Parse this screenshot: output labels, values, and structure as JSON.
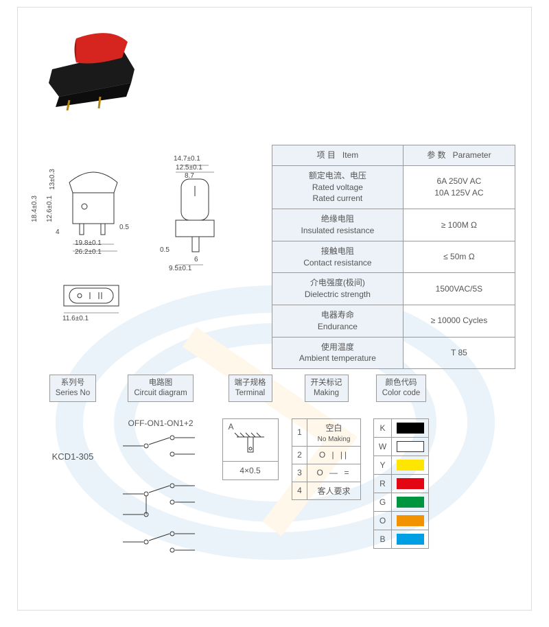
{
  "product_image": {
    "body_color": "#1a1a1a",
    "lever_color": "#d5251e"
  },
  "dimensions": {
    "labels": {
      "d1": "14.7±0.1",
      "d2": "12.5±0.1",
      "d3": "8.7",
      "d4": "13±0.3",
      "d5": "12.6±0.1",
      "d6": "18.4±0.3",
      "d7": "4",
      "d8": "0.5",
      "d9": "19.8±0.1",
      "d10": "26.2±0.1",
      "d11": "0.5",
      "d12": "6",
      "d13": "9.5±0.1",
      "d14": "11.6±0.1"
    }
  },
  "spec_table": {
    "header": {
      "item_cn": "项 目",
      "item_en": "Item",
      "param_cn": "参 数",
      "param_en": "Parameter"
    },
    "rows": [
      {
        "label_cn": "额定电流、电压",
        "label_en1": "Rated voltage",
        "label_en2": "Rated current",
        "value1": "6A  250V AC",
        "value2": "10A 125V AC"
      },
      {
        "label_cn": "绝缘电阻",
        "label_en1": "Insulated resistance",
        "value1": "≥ 100M Ω"
      },
      {
        "label_cn": "接触电阻",
        "label_en1": "Contact resistance",
        "value1": "≤ 50m Ω"
      },
      {
        "label_cn": "介电强度(极间)",
        "label_en1": "Dielectric strength",
        "value1": "1500VAC/5S"
      },
      {
        "label_cn": "电器寿命",
        "label_en1": "Endurance",
        "value1": "≥ 10000 Cycles"
      },
      {
        "label_cn": "使用温度",
        "label_en1": "Ambient temperature",
        "value1": "T 85"
      }
    ]
  },
  "columns": {
    "series": {
      "hdr_cn": "系列号",
      "hdr_en": "Series No",
      "value": "KCD1-305"
    },
    "circuit": {
      "hdr_cn": "电路图",
      "hdr_en": "Circuit diagram",
      "label": "OFF-ON1-ON1+2"
    },
    "terminal": {
      "hdr_cn": "端子规格",
      "hdr_en": "Terminal",
      "top_label": "A",
      "bot_label": "4×0.5"
    },
    "making": {
      "hdr_cn": "开关标记",
      "hdr_en": "Making",
      "rows": [
        {
          "n": "1",
          "cn": "空白",
          "en": "No Making"
        },
        {
          "n": "2",
          "sym": "O  |  ||"
        },
        {
          "n": "3",
          "sym": "O  —  ="
        },
        {
          "n": "4",
          "cn": "客人要求"
        }
      ]
    },
    "colors": {
      "hdr_cn": "颜色代码",
      "hdr_en": "Color code",
      "rows": [
        {
          "code": "K",
          "hex": "#000000",
          "bordered": false
        },
        {
          "code": "W",
          "hex": "#ffffff",
          "bordered": true
        },
        {
          "code": "Y",
          "hex": "#ffe600",
          "bordered": false
        },
        {
          "code": "R",
          "hex": "#e30613",
          "bordered": false
        },
        {
          "code": "G",
          "hex": "#009640",
          "bordered": false
        },
        {
          "code": "O",
          "hex": "#f39200",
          "bordered": false
        },
        {
          "code": "B",
          "hex": "#009fe3",
          "bordered": false
        }
      ]
    }
  },
  "watermark": {
    "ring_color": "#0072bc",
    "accent_color": "#f7a600"
  }
}
